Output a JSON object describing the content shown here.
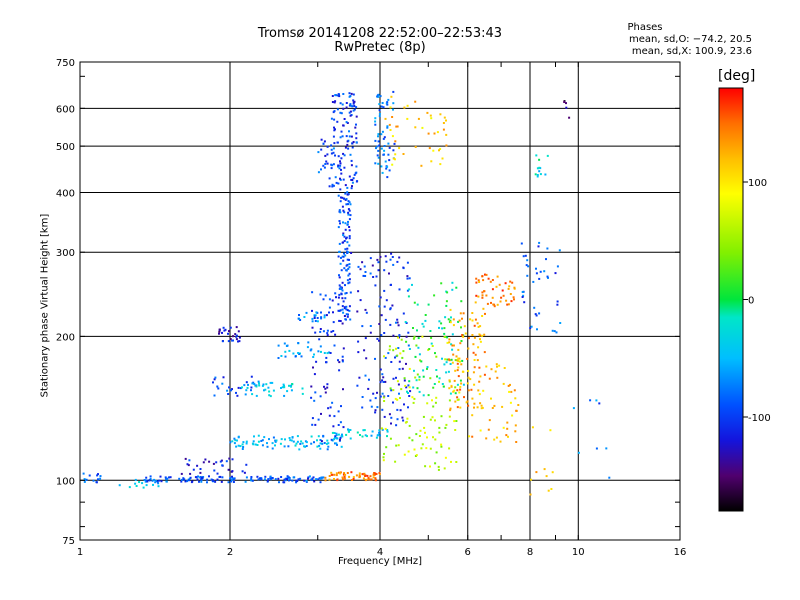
{
  "chart_data": {
    "type": "scatter",
    "title": "Tromsø 20141208 22:52:00–22:53:43",
    "subtitle": "RwPretec (8p)",
    "xlabel": "Frequency [MHz]",
    "ylabel": "Stationary phase Virtual Height [km]",
    "xscale": "log",
    "yscale": "log",
    "xlim": [
      1,
      16
    ],
    "ylim": [
      75,
      750
    ],
    "x_ticks": [
      1,
      2,
      4,
      6,
      8,
      10,
      16
    ],
    "y_ticks": [
      75,
      100,
      200,
      300,
      400,
      500,
      600,
      750
    ],
    "x_gridlines": [
      2,
      4,
      6,
      8,
      10
    ],
    "y_gridlines": [
      100,
      200,
      300,
      400,
      500,
      600
    ],
    "grid": true,
    "color_by": "phase",
    "colorbar": {
      "unit": "[deg]",
      "range": [
        -180,
        180
      ],
      "ticks": [
        100,
        0,
        -100
      ],
      "colormap": "rainbow (black→purple→blue→cyan→green→yellow→orange→red)"
    },
    "phase_stats": {
      "header": "Phases",
      "o_line": "mean, sd,O: −74.2, 20.5",
      "x_line": "mean, sd,X: 100.9, 23.6"
    },
    "clusters": [
      {
        "f": [
          1.0,
          1.1
        ],
        "h": [
          98,
          104
        ],
        "phase": -85,
        "n": 14
      },
      {
        "f": [
          1.2,
          1.45
        ],
        "h": [
          96,
          102
        ],
        "phase": -40,
        "n": 14
      },
      {
        "f": [
          1.35,
          3.1
        ],
        "h": [
          99,
          102
        ],
        "phase": -90,
        "n": 150
      },
      {
        "f": [
          3.1,
          4.0
        ],
        "h": [
          100,
          104
        ],
        "phase": 140,
        "n": 60
      },
      {
        "f": [
          1.6,
          2.2
        ],
        "h": [
          103,
          112
        ],
        "phase": -110,
        "n": 30
      },
      {
        "f": [
          2.0,
          3.4
        ],
        "h": [
          116,
          124
        ],
        "phase": -50,
        "n": 90
      },
      {
        "f": [
          3.2,
          4.2
        ],
        "h": [
          122,
          128
        ],
        "phase": -40,
        "n": 35
      },
      {
        "f": [
          1.9,
          2.1
        ],
        "h": [
          195,
          210
        ],
        "phase": -120,
        "n": 28
      },
      {
        "f": [
          1.8,
          2.3
        ],
        "h": [
          150,
          165
        ],
        "phase": -95,
        "n": 25
      },
      {
        "f": [
          2.1,
          2.8
        ],
        "h": [
          150,
          160
        ],
        "phase": -40,
        "n": 40
      },
      {
        "f": [
          2.5,
          3.2
        ],
        "h": [
          180,
          195
        ],
        "phase": -60,
        "n": 30
      },
      {
        "f": [
          2.7,
          3.1
        ],
        "h": [
          215,
          225
        ],
        "phase": -65,
        "n": 20
      },
      {
        "f": [
          2.9,
          3.4
        ],
        "h": [
          120,
          250
        ],
        "phase": -105,
        "n": 80
      },
      {
        "f": [
          3.3,
          3.5
        ],
        "h": [
          215,
          400
        ],
        "phase": -95,
        "n": 130
      },
      {
        "f": [
          3.2,
          3.6
        ],
        "h": [
          400,
          650
        ],
        "phase": -100,
        "n": 120
      },
      {
        "f": [
          3.0,
          3.3
        ],
        "h": [
          410,
          520
        ],
        "phase": -95,
        "n": 30
      },
      {
        "f": [
          3.6,
          4.6
        ],
        "h": [
          130,
          300
        ],
        "phase": -105,
        "n": 140
      },
      {
        "f": [
          3.9,
          4.3
        ],
        "h": [
          430,
          650
        ],
        "phase": -80,
        "n": 60
      },
      {
        "f": [
          4.1,
          5.5
        ],
        "h": [
          450,
          640
        ],
        "phase": 110,
        "n": 45
      },
      {
        "f": [
          4.0,
          5.8
        ],
        "h": [
          105,
          200
        ],
        "phase": 60,
        "n": 120
      },
      {
        "f": [
          4.5,
          5.9
        ],
        "h": [
          150,
          260
        ],
        "phase": -10,
        "n": 90
      },
      {
        "f": [
          5.5,
          6.5
        ],
        "h": [
          140,
          230
        ],
        "phase": 130,
        "n": 100
      },
      {
        "f": [
          6.2,
          7.5
        ],
        "h": [
          230,
          270
        ],
        "phase": 145,
        "n": 50
      },
      {
        "f": [
          6.0,
          7.6
        ],
        "h": [
          120,
          180
        ],
        "phase": 120,
        "n": 50
      },
      {
        "f": [
          7.7,
          9.2
        ],
        "h": [
          200,
          320
        ],
        "phase": -90,
        "n": 40
      },
      {
        "f": [
          8.2,
          8.7
        ],
        "h": [
          420,
          480
        ],
        "phase": -30,
        "n": 12
      },
      {
        "f": [
          8.0,
          9.0
        ],
        "h": [
          92,
          130
        ],
        "phase": 110,
        "n": 10
      },
      {
        "f": [
          9.3,
          9.7
        ],
        "h": [
          570,
          630
        ],
        "phase": -150,
        "n": 5
      },
      {
        "f": [
          9.6,
          12.0
        ],
        "h": [
          85,
          150
        ],
        "phase": -80,
        "n": 8
      }
    ]
  }
}
